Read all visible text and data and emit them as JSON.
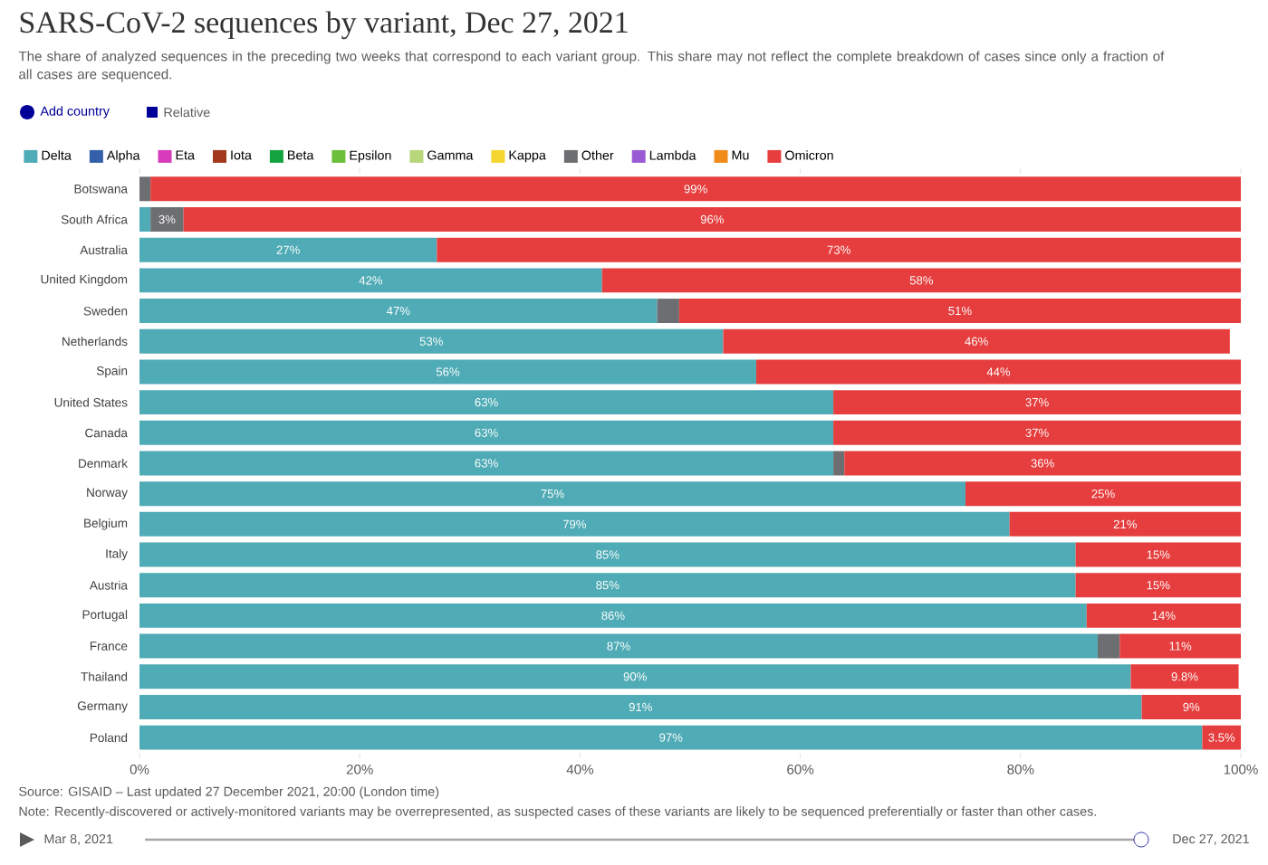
{
  "chart_data": {
    "type": "bar",
    "orientation": "horizontal",
    "stacked": true,
    "title": "SARS-CoV-2 sequences by variant, Dec 27, 2021",
    "subtitle": "The share of analyzed sequences in the preceding two weeks that correspond to each variant group. This share may not reflect the complete breakdown of cases since only a fraction of all cases are sequenced.",
    "categories": [
      "Botswana",
      "South Africa",
      "Australia",
      "United Kingdom",
      "Sweden",
      "Netherlands",
      "Spain",
      "United States",
      "Canada",
      "Denmark",
      "Norway",
      "Belgium",
      "Italy",
      "Austria",
      "Portugal",
      "France",
      "Thailand",
      "Germany",
      "Poland"
    ],
    "series": [
      {
        "name": "Delta",
        "color": "#4fabb5",
        "values": [
          null,
          1,
          27,
          42,
          47,
          53,
          56,
          63,
          63,
          63,
          75,
          79,
          85,
          85,
          86,
          87,
          90,
          91,
          96.5
        ],
        "value_labels": [
          null,
          null,
          "27%",
          "42%",
          "47%",
          "53%",
          "56%",
          "63%",
          "63%",
          "63%",
          "75%",
          "79%",
          "85%",
          "85%",
          "86%",
          "87%",
          "90%",
          "91%",
          "97%"
        ]
      },
      {
        "name": "Alpha",
        "color": "#3360a9",
        "values": [
          null,
          null,
          null,
          null,
          null,
          null,
          null,
          null,
          null,
          null,
          null,
          null,
          null,
          null,
          null,
          null,
          null,
          null,
          null
        ]
      },
      {
        "name": "Eta",
        "color": "#d73cbd",
        "values": [
          null,
          null,
          null,
          null,
          null,
          null,
          null,
          null,
          null,
          null,
          null,
          null,
          null,
          null,
          null,
          null,
          null,
          null,
          null
        ]
      },
      {
        "name": "Iota",
        "color": "#a2391c",
        "values": [
          null,
          null,
          null,
          null,
          null,
          null,
          null,
          null,
          null,
          null,
          null,
          null,
          null,
          null,
          null,
          null,
          null,
          null,
          null
        ]
      },
      {
        "name": "Beta",
        "color": "#15a33f",
        "values": [
          null,
          null,
          null,
          null,
          null,
          null,
          null,
          null,
          null,
          null,
          null,
          null,
          null,
          null,
          null,
          null,
          null,
          null,
          null
        ]
      },
      {
        "name": "Epsilon",
        "color": "#6bbf3a",
        "values": [
          null,
          null,
          null,
          null,
          null,
          null,
          null,
          null,
          null,
          null,
          null,
          null,
          null,
          null,
          null,
          null,
          null,
          null,
          null
        ]
      },
      {
        "name": "Gamma",
        "color": "#b8d67b",
        "values": [
          null,
          null,
          null,
          null,
          null,
          null,
          null,
          null,
          null,
          null,
          null,
          null,
          null,
          null,
          null,
          null,
          null,
          null,
          null
        ]
      },
      {
        "name": "Kappa",
        "color": "#f5d631",
        "values": [
          null,
          null,
          null,
          null,
          null,
          null,
          null,
          null,
          null,
          null,
          null,
          null,
          null,
          null,
          null,
          null,
          null,
          null,
          null
        ]
      },
      {
        "name": "Other",
        "color": "#6d6e71",
        "values": [
          1,
          3,
          null,
          null,
          2,
          null,
          null,
          null,
          null,
          1,
          null,
          null,
          null,
          null,
          null,
          2,
          null,
          null,
          null
        ],
        "value_labels": [
          null,
          "3%",
          null,
          null,
          null,
          null,
          null,
          null,
          null,
          null,
          null,
          null,
          null,
          null,
          null,
          null,
          null,
          null,
          null
        ]
      },
      {
        "name": "Lambda",
        "color": "#9a5cd4",
        "values": [
          null,
          null,
          null,
          null,
          null,
          null,
          null,
          null,
          null,
          null,
          null,
          null,
          null,
          null,
          null,
          null,
          null,
          null,
          null
        ]
      },
      {
        "name": "Mu",
        "color": "#f08b1a",
        "values": [
          null,
          null,
          null,
          null,
          null,
          null,
          null,
          null,
          null,
          null,
          null,
          null,
          null,
          null,
          null,
          null,
          null,
          null,
          null
        ]
      },
      {
        "name": "Omicron",
        "color": "#e63e3e",
        "values": [
          99,
          96,
          73,
          58,
          51,
          46,
          44,
          37,
          37,
          36,
          25,
          21,
          15,
          15,
          14,
          11,
          9.8,
          9,
          3.5
        ],
        "value_labels": [
          "99%",
          "96%",
          "73%",
          "58%",
          "51%",
          "46%",
          "44%",
          "37%",
          "37%",
          "36%",
          "25%",
          "21%",
          "15%",
          "15%",
          "14%",
          "11%",
          "9.8%",
          "9%",
          "3.5%"
        ]
      }
    ],
    "xlim": [
      0,
      100
    ],
    "xticks": [
      {
        "value": 0,
        "label": "0%"
      },
      {
        "value": 20,
        "label": "20%"
      },
      {
        "value": 40,
        "label": "40%"
      },
      {
        "value": 60,
        "label": "60%"
      },
      {
        "value": 80,
        "label": "80%"
      },
      {
        "value": 100,
        "label": "100%"
      }
    ],
    "legend": "top left",
    "annotations": [
      "Add country",
      "Relative",
      "Source: GISAID – Last updated 27 December 2021, 20:00 (London time)",
      "Note: Recently-discovered or actively-monitored variants may be overrepresented, as suspected cases of these variants are likely to be sequenced preferentially or faster than other cases.",
      "Mar 8, 2021",
      "Dec 27, 2021"
    ]
  }
}
